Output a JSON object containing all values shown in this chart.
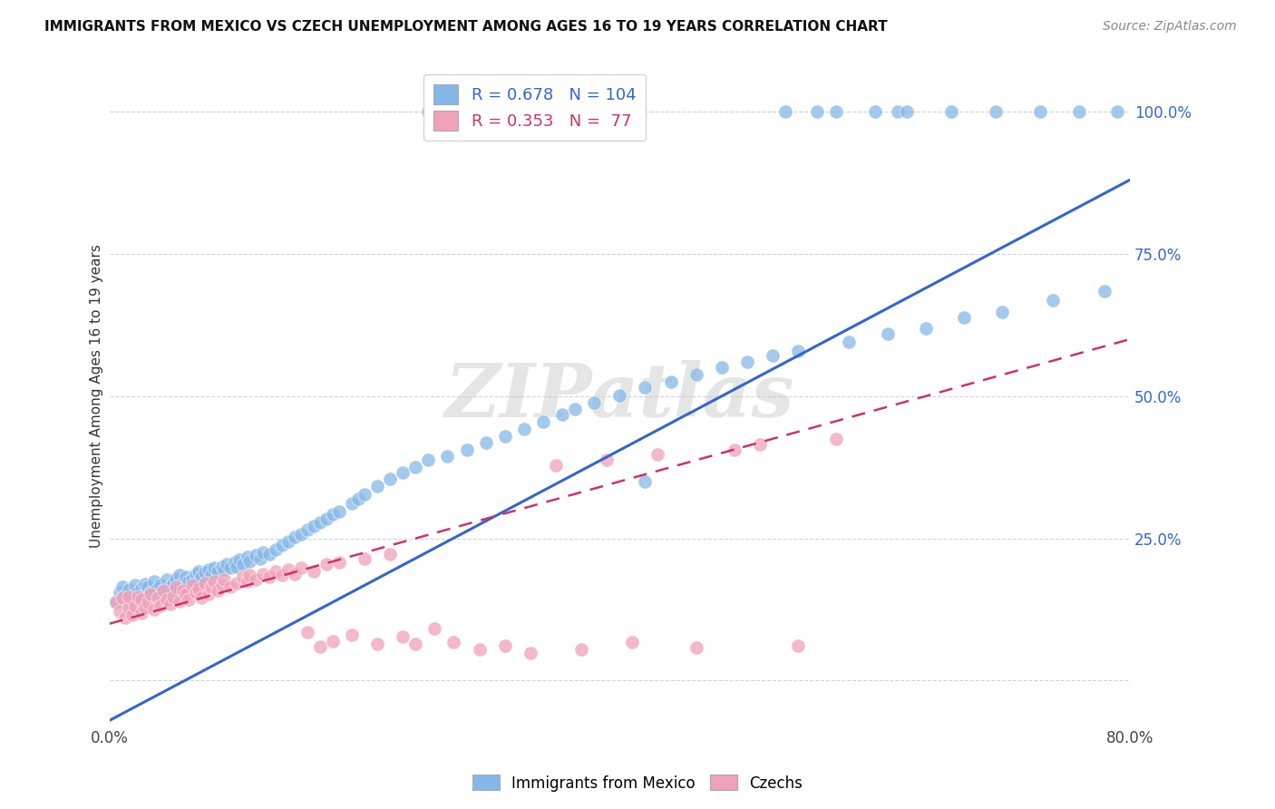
{
  "title": "IMMIGRANTS FROM MEXICO VS CZECH UNEMPLOYMENT AMONG AGES 16 TO 19 YEARS CORRELATION CHART",
  "source": "Source: ZipAtlas.com",
  "ylabel": "Unemployment Among Ages 16 to 19 years",
  "xlim": [
    0.0,
    0.8
  ],
  "ylim": [
    -0.08,
    1.08
  ],
  "xtick_positions": [
    0.0,
    0.1,
    0.2,
    0.3,
    0.4,
    0.5,
    0.6,
    0.7,
    0.8
  ],
  "xticklabels": [
    "0.0%",
    "",
    "",
    "",
    "",
    "",
    "",
    "",
    "80.0%"
  ],
  "ytick_positions": [
    0.0,
    0.25,
    0.5,
    0.75,
    1.0
  ],
  "yticklabels": [
    "",
    "25.0%",
    "50.0%",
    "75.0%",
    "100.0%"
  ],
  "blue_color": "#85b8e8",
  "pink_color": "#f0a0b8",
  "blue_line_color": "#3366cc",
  "pink_line_color": "#cc3366",
  "grid_color": "#ccccdd",
  "background_color": "#ffffff",
  "watermark": "ZIPatlas",
  "legend_R_blue": "0.678",
  "legend_N_blue": "104",
  "legend_R_pink": "0.353",
  "legend_N_pink": "77",
  "blue_regression": [
    0.0,
    0.8,
    -0.07,
    0.88
  ],
  "pink_regression": [
    0.0,
    0.8,
    0.1,
    0.6
  ],
  "blue_scatter_x": [
    0.005,
    0.008,
    0.01,
    0.01,
    0.012,
    0.015,
    0.015,
    0.018,
    0.02,
    0.02,
    0.022,
    0.025,
    0.025,
    0.028,
    0.028,
    0.03,
    0.03,
    0.032,
    0.035,
    0.035,
    0.038,
    0.04,
    0.04,
    0.042,
    0.045,
    0.045,
    0.048,
    0.05,
    0.05,
    0.052,
    0.055,
    0.055,
    0.058,
    0.06,
    0.06,
    0.062,
    0.065,
    0.068,
    0.07,
    0.07,
    0.072,
    0.075,
    0.078,
    0.08,
    0.082,
    0.085,
    0.088,
    0.09,
    0.092,
    0.095,
    0.098,
    0.1,
    0.102,
    0.105,
    0.108,
    0.11,
    0.115,
    0.118,
    0.12,
    0.125,
    0.13,
    0.135,
    0.14,
    0.145,
    0.15,
    0.155,
    0.16,
    0.165,
    0.17,
    0.175,
    0.18,
    0.19,
    0.195,
    0.2,
    0.21,
    0.22,
    0.23,
    0.24,
    0.25,
    0.265,
    0.28,
    0.295,
    0.31,
    0.325,
    0.34,
    0.355,
    0.365,
    0.38,
    0.4,
    0.42,
    0.44,
    0.46,
    0.48,
    0.5,
    0.52,
    0.54,
    0.58,
    0.61,
    0.64,
    0.67,
    0.7,
    0.74,
    0.78,
    0.42
  ],
  "blue_scatter_y": [
    0.14,
    0.155,
    0.145,
    0.165,
    0.15,
    0.138,
    0.16,
    0.142,
    0.148,
    0.168,
    0.155,
    0.145,
    0.162,
    0.152,
    0.17,
    0.148,
    0.165,
    0.155,
    0.158,
    0.175,
    0.162,
    0.15,
    0.168,
    0.158,
    0.162,
    0.178,
    0.165,
    0.158,
    0.172,
    0.18,
    0.168,
    0.185,
    0.172,
    0.165,
    0.182,
    0.175,
    0.178,
    0.188,
    0.175,
    0.192,
    0.182,
    0.19,
    0.195,
    0.185,
    0.198,
    0.192,
    0.2,
    0.195,
    0.205,
    0.198,
    0.208,
    0.2,
    0.212,
    0.205,
    0.218,
    0.21,
    0.22,
    0.215,
    0.225,
    0.222,
    0.23,
    0.238,
    0.245,
    0.252,
    0.258,
    0.265,
    0.272,
    0.278,
    0.285,
    0.292,
    0.298,
    0.312,
    0.32,
    0.328,
    0.342,
    0.355,
    0.365,
    0.375,
    0.388,
    0.395,
    0.405,
    0.418,
    0.43,
    0.442,
    0.455,
    0.468,
    0.478,
    0.488,
    0.502,
    0.515,
    0.525,
    0.538,
    0.55,
    0.56,
    0.572,
    0.58,
    0.595,
    0.61,
    0.62,
    0.638,
    0.648,
    0.668,
    0.685,
    0.35
  ],
  "pink_scatter_x": [
    0.005,
    0.008,
    0.01,
    0.012,
    0.015,
    0.015,
    0.018,
    0.02,
    0.022,
    0.025,
    0.025,
    0.028,
    0.03,
    0.032,
    0.035,
    0.038,
    0.04,
    0.042,
    0.045,
    0.048,
    0.05,
    0.052,
    0.055,
    0.058,
    0.06,
    0.062,
    0.065,
    0.068,
    0.07,
    0.072,
    0.075,
    0.078,
    0.08,
    0.082,
    0.085,
    0.088,
    0.09,
    0.095,
    0.1,
    0.105,
    0.108,
    0.11,
    0.115,
    0.12,
    0.125,
    0.13,
    0.135,
    0.14,
    0.145,
    0.15,
    0.155,
    0.16,
    0.165,
    0.17,
    0.175,
    0.18,
    0.19,
    0.2,
    0.21,
    0.22,
    0.23,
    0.24,
    0.255,
    0.27,
    0.29,
    0.31,
    0.33,
    0.35,
    0.37,
    0.39,
    0.41,
    0.43,
    0.46,
    0.49,
    0.51,
    0.54,
    0.57
  ],
  "pink_scatter_y": [
    0.138,
    0.122,
    0.145,
    0.11,
    0.128,
    0.148,
    0.115,
    0.132,
    0.148,
    0.118,
    0.142,
    0.128,
    0.138,
    0.152,
    0.125,
    0.145,
    0.132,
    0.158,
    0.142,
    0.135,
    0.148,
    0.165,
    0.14,
    0.158,
    0.152,
    0.142,
    0.168,
    0.155,
    0.162,
    0.145,
    0.172,
    0.152,
    0.165,
    0.175,
    0.158,
    0.168,
    0.178,
    0.165,
    0.172,
    0.182,
    0.175,
    0.185,
    0.178,
    0.188,
    0.182,
    0.192,
    0.185,
    0.195,
    0.188,
    0.198,
    0.085,
    0.192,
    0.06,
    0.205,
    0.07,
    0.208,
    0.08,
    0.215,
    0.065,
    0.222,
    0.078,
    0.065,
    0.092,
    0.068,
    0.055,
    0.062,
    0.048,
    0.378,
    0.055,
    0.388,
    0.068,
    0.398,
    0.058,
    0.405,
    0.415,
    0.062,
    0.425
  ],
  "blue_top_x": [
    0.53,
    0.555,
    0.57,
    0.6,
    0.618,
    0.625,
    0.66,
    0.695,
    0.73,
    0.76,
    0.79
  ],
  "blue_top_y": [
    1.0,
    1.0,
    1.0,
    1.0,
    1.0,
    1.0,
    1.0,
    1.0,
    1.0,
    1.0,
    1.0
  ],
  "pink_top_x": [
    0.25
  ],
  "pink_top_y": [
    1.0
  ]
}
